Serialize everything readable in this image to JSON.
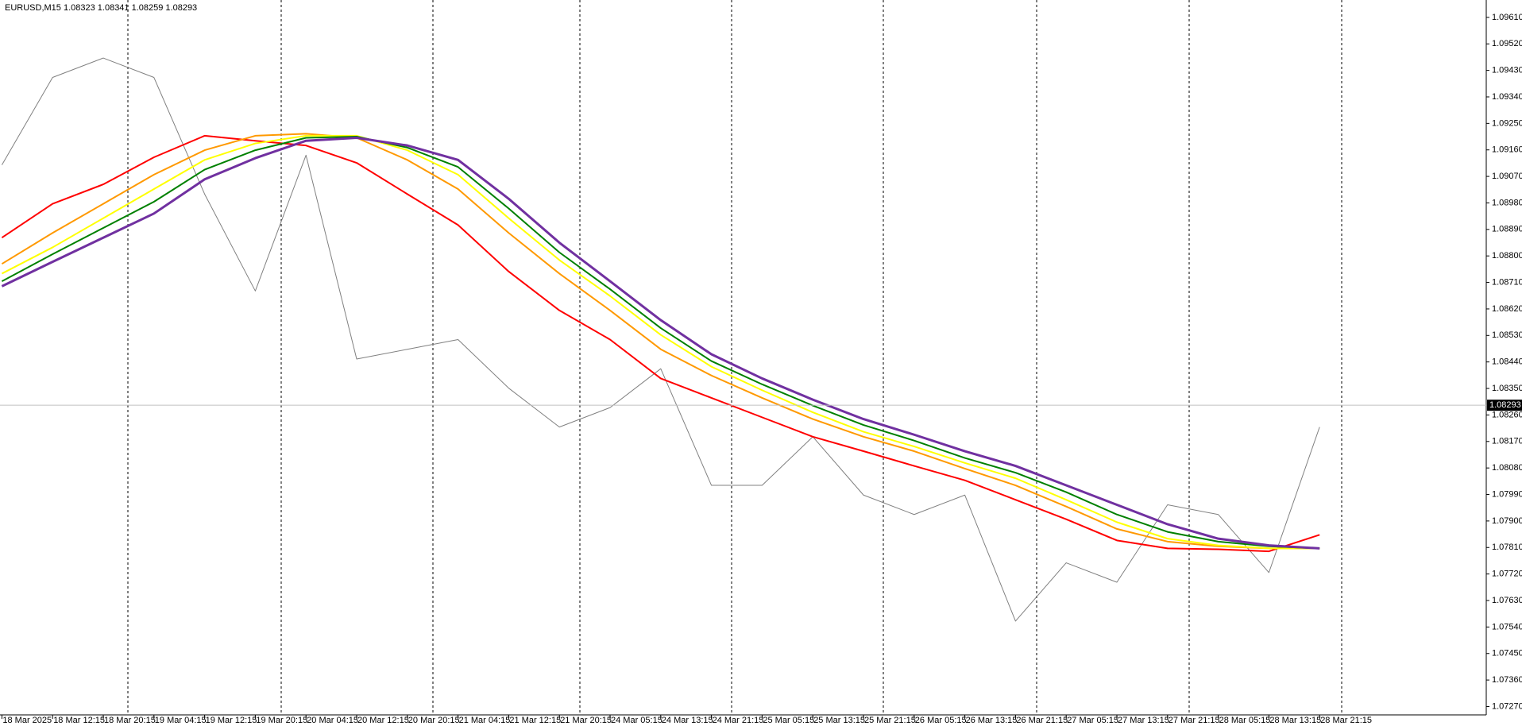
{
  "chart_data": {
    "type": "line",
    "title": "EURUSD,M15  1.08323 1.08341 1.08259 1.08293",
    "categories": [
      "18 Mar 2025",
      "18 Mar 12:15",
      "18 Mar 20:15",
      "19 Mar 04:15",
      "19 Mar 12:15",
      "19 Mar 20:15",
      "20 Mar 04:15",
      "20 Mar 12:15",
      "20 Mar 20:15",
      "21 Mar 04:15",
      "21 Mar 12:15",
      "21 Mar 20:15",
      "24 Mar 05:15",
      "24 Mar 13:15",
      "24 Mar 21:15",
      "25 Mar 05:15",
      "25 Mar 13:15",
      "25 Mar 21:15",
      "26 Mar 05:15",
      "26 Mar 13:15",
      "26 Mar 21:15",
      "27 Mar 05:15",
      "27 Mar 13:15",
      "27 Mar 21:15",
      "28 Mar 05:15",
      "28 Mar 13:15",
      "28 Mar 21:15"
    ],
    "series": [
      {
        "color": "#808080",
        "values": [
          1.09109,
          1.09406,
          1.09472,
          1.09406,
          1.0901,
          1.08681,
          1.09142,
          1.0845,
          1.08483,
          1.08516,
          1.08351,
          1.08219,
          1.08285,
          1.08417,
          1.08021,
          1.08021,
          1.08186,
          1.07988,
          1.07922,
          1.07988,
          1.0756,
          1.07758,
          1.07692,
          1.07955,
          1.07922,
          1.07725,
          1.08219
        ]
      },
      {
        "color": "#ff0000",
        "values": [
          1.08862,
          1.08977,
          1.09043,
          1.09135,
          1.09208,
          1.09191,
          1.09175,
          1.09116,
          1.0901,
          1.08905,
          1.08747,
          1.08615,
          1.08516,
          1.08384,
          1.08318,
          1.08252,
          1.08186,
          1.08137,
          1.08087,
          1.08038,
          1.07972,
          1.07906,
          1.07834,
          1.07807,
          1.07804,
          1.07797,
          1.07853
        ]
      },
      {
        "color": "#ff9900",
        "values": [
          1.08773,
          1.08878,
          1.08977,
          1.09076,
          1.09159,
          1.09208,
          1.09215,
          1.09201,
          1.09126,
          1.09027,
          1.08878,
          1.0874,
          1.08615,
          1.08483,
          1.08394,
          1.08318,
          1.08246,
          1.08186,
          1.08137,
          1.08078,
          1.08021,
          1.07949,
          1.07873,
          1.0783,
          1.07814,
          1.07807,
          1.07807
        ]
      },
      {
        "color": "#ffff00",
        "values": [
          1.0874,
          1.08829,
          1.08928,
          1.09027,
          1.09126,
          1.09182,
          1.09208,
          1.09208,
          1.09159,
          1.09076,
          1.08928,
          1.08786,
          1.08664,
          1.08532,
          1.08424,
          1.08344,
          1.08269,
          1.08203,
          1.08153,
          1.08097,
          1.08045,
          1.07972,
          1.07896,
          1.0784,
          1.07817,
          1.07807,
          1.07807
        ]
      },
      {
        "color": "#008000",
        "values": [
          1.08714,
          1.08806,
          1.08895,
          1.08984,
          1.09093,
          1.09159,
          1.09201,
          1.09205,
          1.09168,
          1.09102,
          1.08961,
          1.08812,
          1.08687,
          1.08555,
          1.08443,
          1.08364,
          1.08292,
          1.08226,
          1.08173,
          1.08114,
          1.08064,
          1.07998,
          1.07922,
          1.07863,
          1.0783,
          1.07814,
          1.07807
        ]
      },
      {
        "color": "#7030a0",
        "values": [
          1.08697,
          1.0878,
          1.08862,
          1.08944,
          1.0906,
          1.09132,
          1.09191,
          1.09201,
          1.09175,
          1.09126,
          1.08994,
          1.08845,
          1.08714,
          1.08582,
          1.08466,
          1.08384,
          1.08312,
          1.08246,
          1.08193,
          1.08137,
          1.08087,
          1.08021,
          1.07955,
          1.07889,
          1.0784,
          1.07817,
          1.07807
        ]
      }
    ],
    "last_price": 1.08293,
    "ylim": [
      1.07247,
      1.09669
    ],
    "yticks": [
      {
        "value": 1.0961,
        "label": "1.09610"
      },
      {
        "value": 1.0952,
        "label": "1.09520"
      },
      {
        "value": 1.0943,
        "label": "1.09430"
      },
      {
        "value": 1.0934,
        "label": "1.09340"
      },
      {
        "value": 1.0925,
        "label": "1.09250"
      },
      {
        "value": 1.0916,
        "label": "1.09160"
      },
      {
        "value": 1.0907,
        "label": "1.09070"
      },
      {
        "value": 1.0898,
        "label": "1.08980"
      },
      {
        "value": 1.0889,
        "label": "1.08890"
      },
      {
        "value": 1.088,
        "label": "1.08800"
      },
      {
        "value": 1.0871,
        "label": "1.08710"
      },
      {
        "value": 1.0862,
        "label": "1.08620"
      },
      {
        "value": 1.0853,
        "label": "1.08530"
      },
      {
        "value": 1.0844,
        "label": "1.08440"
      },
      {
        "value": 1.0835,
        "label": "1.08350"
      },
      {
        "value": 1.0826,
        "label": "1.08260"
      },
      {
        "value": 1.0817,
        "label": "1.08170"
      },
      {
        "value": 1.0808,
        "label": "1.08080"
      },
      {
        "value": 1.0799,
        "label": "1.07990"
      },
      {
        "value": 1.079,
        "label": "1.07900"
      },
      {
        "value": 1.0781,
        "label": "1.07810"
      },
      {
        "value": 1.0772,
        "label": "1.07720"
      },
      {
        "value": 1.0763,
        "label": "1.07630"
      },
      {
        "value": 1.0754,
        "label": "1.07540"
      },
      {
        "value": 1.0745,
        "label": "1.07450"
      },
      {
        "value": 1.0736,
        "label": "1.07360"
      },
      {
        "value": 1.0727,
        "label": "1.07270"
      }
    ]
  }
}
